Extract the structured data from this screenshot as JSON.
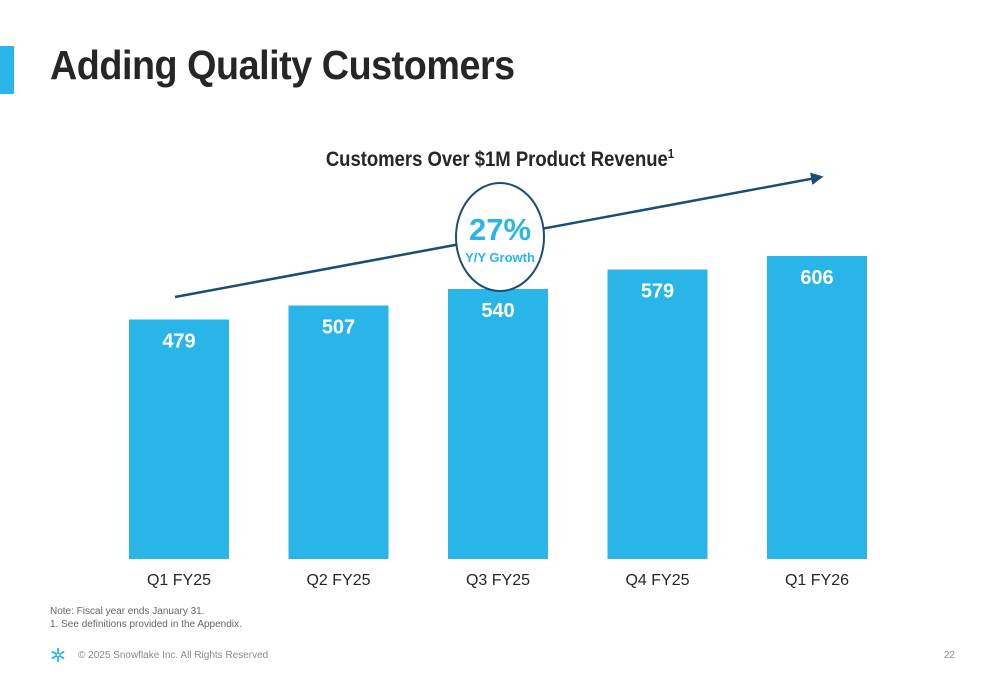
{
  "slide": {
    "title": "Adding Quality Customers",
    "accent_color": "#29b5e8",
    "page_number": "22"
  },
  "chart_data": {
    "type": "bar",
    "title": "Customers Over $1M Product Revenue",
    "title_superscript": "1",
    "categories": [
      "Q1 FY25",
      "Q2 FY25",
      "Q3 FY25",
      "Q4 FY25",
      "Q1 FY26"
    ],
    "values": [
      479,
      507,
      540,
      579,
      606
    ],
    "data_labels": [
      "479",
      "507",
      "540",
      "579",
      "606"
    ],
    "ylim": [
      0,
      700
    ],
    "bar_color": "#29b5e8",
    "grid": false,
    "annotation": {
      "value": "27%",
      "label": "Y/Y Growth",
      "color": "#29b5e8",
      "arrow_color": "#1b4e74"
    }
  },
  "notes": {
    "line1": "Note: Fiscal year ends January 31.",
    "line2": "1.  See definitions provided in the Appendix."
  },
  "footer": {
    "logo_icon": "snowflake-logo-icon",
    "copyright": "© 2025 Snowflake Inc. All Rights Reserved"
  }
}
